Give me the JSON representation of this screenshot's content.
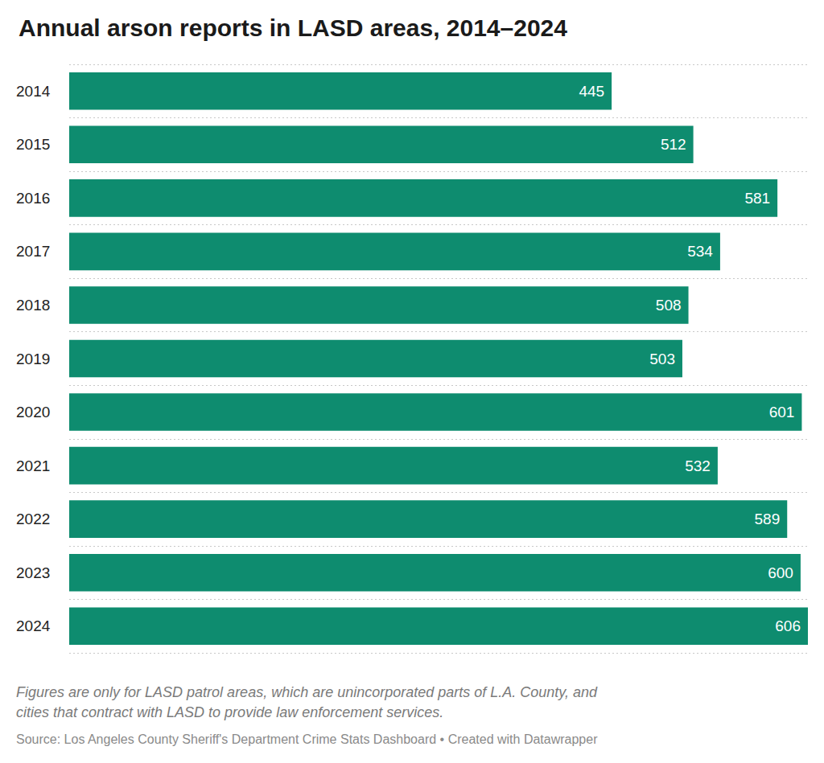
{
  "chart_data": {
    "type": "bar",
    "orientation": "horizontal",
    "title": "Annual arson reports in LASD areas, 2014–2024",
    "categories": [
      "2014",
      "2015",
      "2016",
      "2017",
      "2018",
      "2019",
      "2020",
      "2021",
      "2022",
      "2023",
      "2024"
    ],
    "values": [
      445,
      512,
      581,
      534,
      508,
      503,
      601,
      532,
      589,
      600,
      606
    ],
    "color": "#0e8c6f",
    "xlim": [
      0,
      606
    ],
    "data_labels": true,
    "tick_labels": "y",
    "grid": true,
    "note": "Figures are only for LASD patrol areas, which are unincorporated parts of L.A. County, and cities that contract with LASD to provide law enforcement services.",
    "source": "Source: Los Angeles County Sheriff's Department Crime Stats Dashboard • Created with Datawrapper"
  }
}
